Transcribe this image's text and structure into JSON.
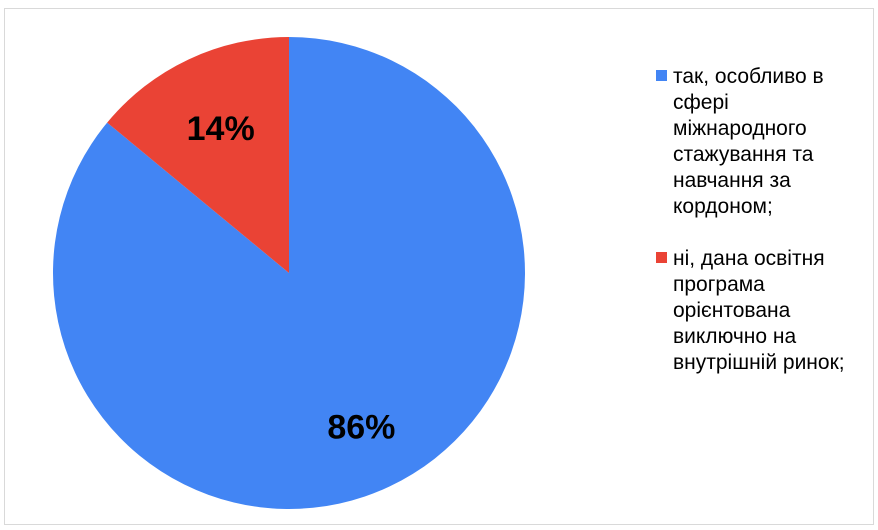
{
  "chart_data": {
    "type": "pie",
    "title": "",
    "start_angle_deg": 0,
    "direction": "clockwise",
    "legend_position": "right",
    "slices": [
      {
        "label": "так, особливо в сфері міжнародного стажування та навчання за кордоном;",
        "value": 86,
        "display": "86%",
        "color": "#4285f4"
      },
      {
        "label": "ні, дана освітня програма орієнтована виключно на внутрішній ринок;",
        "value": 14,
        "display": "14%",
        "color": "#ea4335"
      }
    ]
  }
}
